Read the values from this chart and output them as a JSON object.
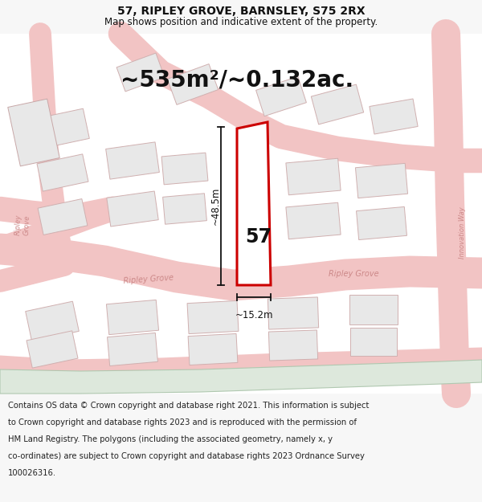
{
  "title_line1": "57, RIPLEY GROVE, BARNSLEY, S75 2RX",
  "title_line2": "Map shows position and indicative extent of the property.",
  "area_text": "~535m²/~0.132ac.",
  "plot_number": "57",
  "dim_height": "~48.5m",
  "dim_width": "~15.2m",
  "footer_lines": [
    "Contains OS data © Crown copyright and database right 2021. This information is subject",
    "to Crown copyright and database rights 2023 and is reproduced with the permission of",
    "HM Land Registry. The polygons (including the associated geometry, namely x, y",
    "co-ordinates) are subject to Crown copyright and database rights 2023 Ordnance Survey",
    "100026316."
  ],
  "bg_color": "#f7f7f7",
  "map_bg": "#f9f9f9",
  "road_color": "#f2c4c4",
  "road_outline_color": "#e8a0a0",
  "plot_color": "#cc0000",
  "building_fill": "#e8e8e8",
  "building_edge": "#c8a8a8",
  "building_edge2": "#d0b0b0",
  "dim_line_color": "#111111",
  "text_color": "#111111",
  "road_text_color": "#cc8888",
  "footer_color": "#222222",
  "rail_fill": "#dde8dc",
  "rail_edge": "#b0c8b0"
}
